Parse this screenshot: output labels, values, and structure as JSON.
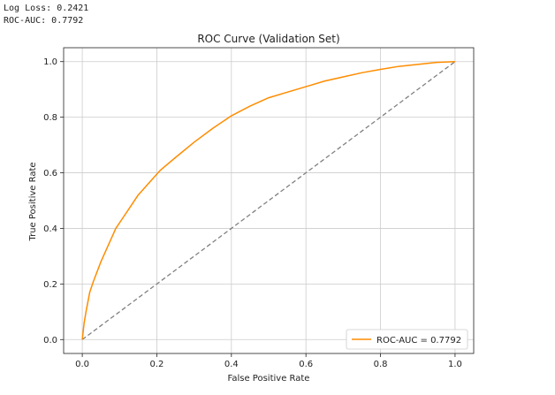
{
  "console": {
    "log_loss_line": "Log Loss: 0.2421",
    "roc_auc_line": "ROC-AUC: 0.7792"
  },
  "colors": {
    "roc_line": "#ff8c00",
    "diagonal": "#808080",
    "grid": "#cccccc"
  },
  "chart_data": {
    "type": "line",
    "title": "ROC Curve (Validation Set)",
    "xlabel": "False Positive Rate",
    "ylabel": "True Positive Rate",
    "xlim": [
      -0.05,
      1.05
    ],
    "ylim": [
      -0.05,
      1.05
    ],
    "xticks": [
      "0.0",
      "0.2",
      "0.4",
      "0.6",
      "0.8",
      "1.0"
    ],
    "yticks": [
      "0.0",
      "0.2",
      "0.4",
      "0.6",
      "0.8",
      "1.0"
    ],
    "grid": true,
    "legend_position": "lower-right",
    "series": [
      {
        "name": "ROC-AUC = 0.7792",
        "style": "solid",
        "x": [
          0.0,
          0.005,
          0.01,
          0.02,
          0.03,
          0.05,
          0.07,
          0.09,
          0.11,
          0.13,
          0.15,
          0.18,
          0.21,
          0.25,
          0.3,
          0.35,
          0.4,
          0.45,
          0.5,
          0.55,
          0.6,
          0.65,
          0.7,
          0.75,
          0.8,
          0.85,
          0.9,
          0.95,
          1.0
        ],
        "y": [
          0.0,
          0.06,
          0.1,
          0.17,
          0.21,
          0.28,
          0.34,
          0.4,
          0.44,
          0.48,
          0.52,
          0.565,
          0.61,
          0.655,
          0.71,
          0.76,
          0.805,
          0.84,
          0.87,
          0.89,
          0.91,
          0.93,
          0.945,
          0.96,
          0.972,
          0.983,
          0.99,
          0.997,
          1.0
        ]
      },
      {
        "style": "dashed",
        "x": [
          0.0,
          1.0
        ],
        "y": [
          0.0,
          1.0
        ]
      }
    ]
  }
}
